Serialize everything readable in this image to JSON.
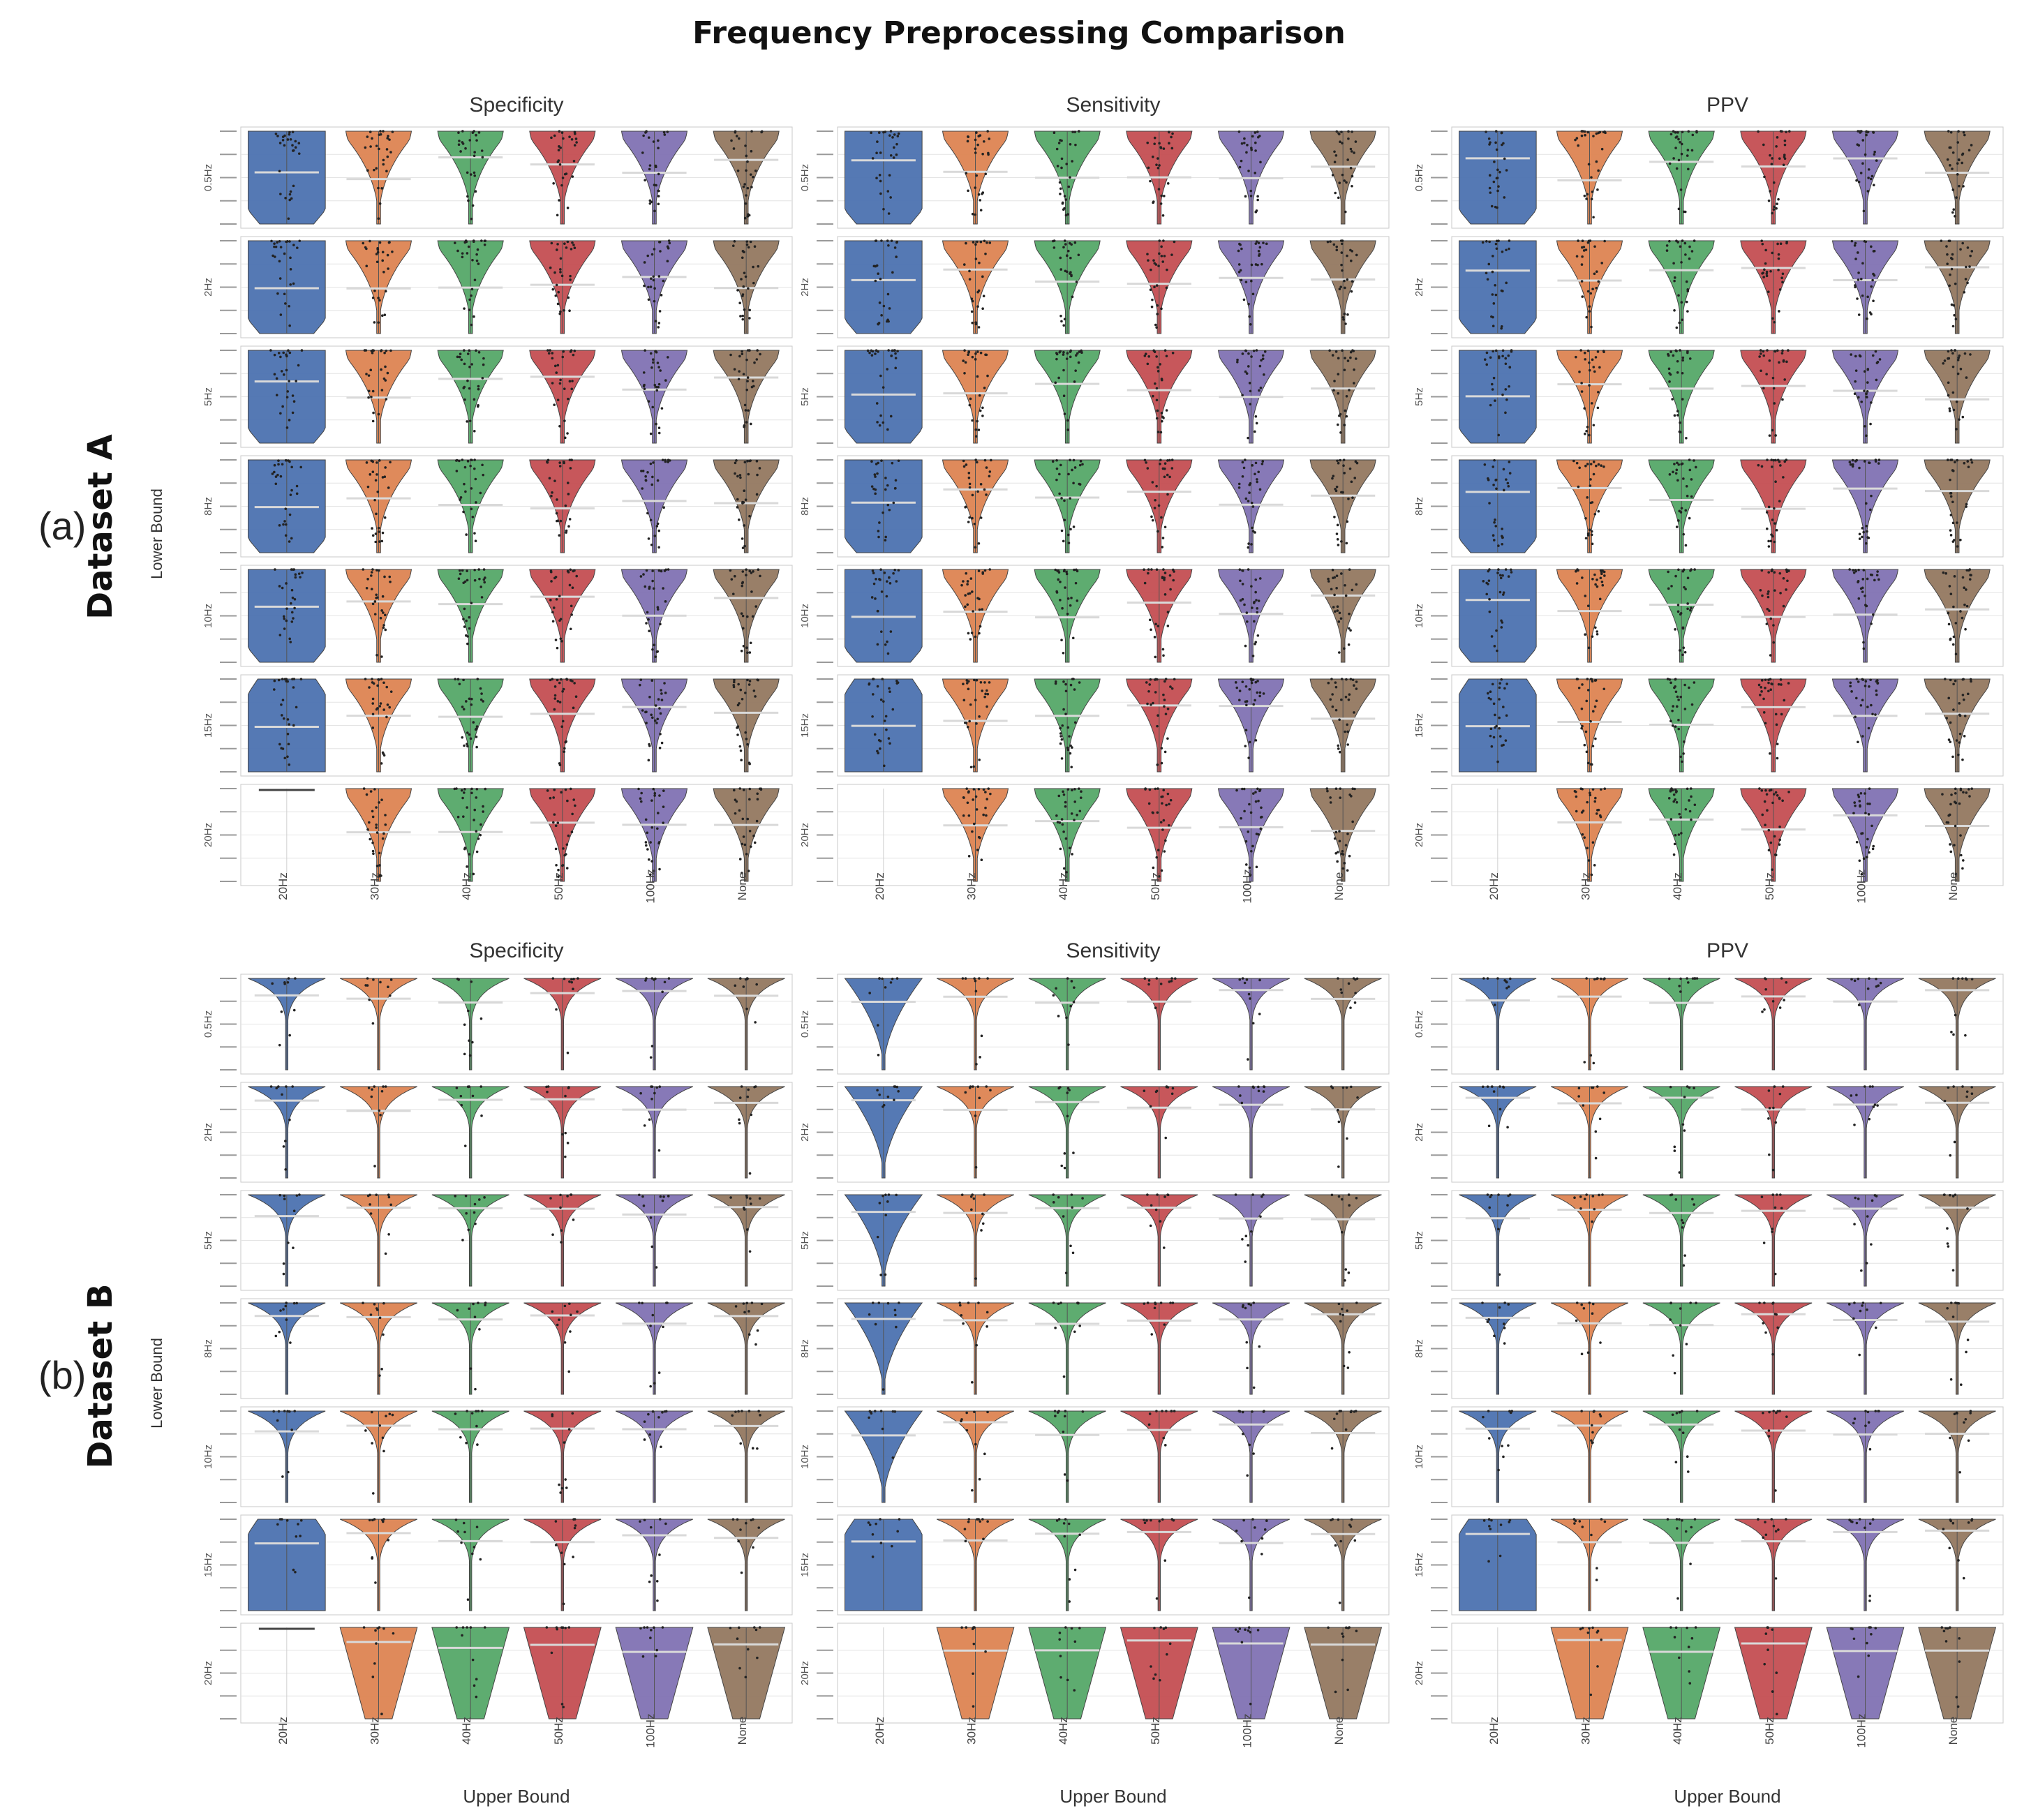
{
  "figure": {
    "title": "Frequency Preprocessing Comparison",
    "colors": [
      "#4c72b0",
      "#dd8452",
      "#55a868",
      "#c44e52",
      "#8172b3",
      "#937860"
    ],
    "sections": [
      {
        "tag": "(a)",
        "dataset": "Dataset A",
        "metrics": [
          "Specificity",
          "Sensitivity",
          "PPV"
        ],
        "row_axis_label": "Lower Bound",
        "col_axis_label": "",
        "rows": [
          "0.5Hz",
          "2Hz",
          "5Hz",
          "8Hz",
          "10Hz",
          "15Hz",
          "20Hz"
        ],
        "columns": [
          "20Hz",
          "30Hz",
          "40Hz",
          "50Hz",
          "100Hz",
          "None"
        ]
      },
      {
        "tag": "(b)",
        "dataset": "Dataset B",
        "metrics": [
          "Specificity",
          "Sensitivity",
          "PPV"
        ],
        "row_axis_label": "Lower Bound",
        "col_axis_label": "Upper Bound",
        "rows": [
          "0.5Hz",
          "2Hz",
          "5Hz",
          "8Hz",
          "10Hz",
          "15Hz",
          "20Hz"
        ],
        "columns": [
          "20Hz",
          "30Hz",
          "40Hz",
          "50Hz",
          "100Hz",
          "None"
        ]
      }
    ]
  },
  "chart_data": [
    {
      "type": "violin",
      "dataset": "Dataset A",
      "metrics": [
        "Specificity",
        "Sensitivity",
        "PPV"
      ],
      "row_label": "Lower Bound",
      "rows": [
        "0.5Hz",
        "2Hz",
        "5Hz",
        "8Hz",
        "10Hz",
        "15Hz",
        "20Hz"
      ],
      "columns": [
        "20Hz",
        "30Hz",
        "40Hz",
        "50Hz",
        "100Hz",
        "None"
      ],
      "empty_cells": [
        [
          6,
          0
        ]
      ],
      "series_colors": [
        "#4c72b0",
        "#dd8452",
        "#55a868",
        "#c44e52",
        "#8172b3",
        "#937860"
      ],
      "distribution_shape": "wide top, narrowing downward (most values near 1.0)"
    },
    {
      "type": "violin",
      "dataset": "Dataset B",
      "metrics": [
        "Specificity",
        "Sensitivity",
        "PPV"
      ],
      "row_label": "Lower Bound",
      "xlabel": "Upper Bound",
      "rows": [
        "0.5Hz",
        "2Hz",
        "5Hz",
        "8Hz",
        "10Hz",
        "15Hz",
        "20Hz"
      ],
      "columns": [
        "20Hz",
        "30Hz",
        "40Hz",
        "50Hz",
        "100Hz",
        "None"
      ],
      "empty_cells": [
        [
          6,
          0
        ]
      ],
      "series_colors": [
        "#4c72b0",
        "#dd8452",
        "#55a868",
        "#c44e52",
        "#8172b3",
        "#937860"
      ],
      "distribution_shape": "thin spikes concentrated at 1.0 with long narrow tails"
    }
  ]
}
